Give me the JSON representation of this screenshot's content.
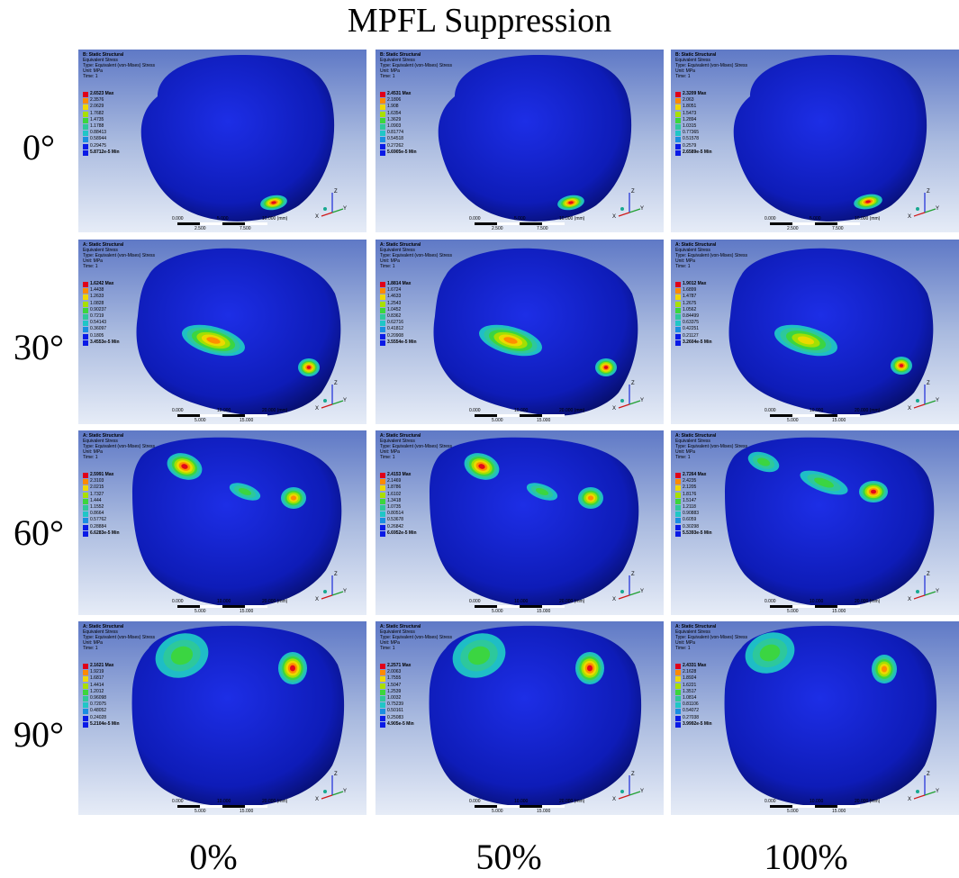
{
  "title": "MPFL Suppression",
  "row_labels": [
    "0°",
    "30°",
    "60°",
    "90°"
  ],
  "col_labels": [
    "0%",
    "50%",
    "100%"
  ],
  "legend_colors": [
    "#e0001a",
    "#ff8a00",
    "#f0d800",
    "#a8e000",
    "#3cd63c",
    "#2ec89a",
    "#20c6c6",
    "#1a8ee0",
    "#0a1ae6"
  ],
  "rows": [
    {
      "header": {
        "system": "B: Static Structural",
        "result": "Equivalent Stress",
        "type": "Type: Equivalent (von-Mises) Stress",
        "unit": "Unit: MPa",
        "time": "Time: 1"
      },
      "scale": {
        "top": [
          "0.000",
          "5.000",
          "10.000 (mm)"
        ],
        "bottom": [
          "2.500",
          "7.500"
        ]
      },
      "panels": [
        {
          "legend": [
            "2.6523 Max",
            "2.3576",
            "2.0629",
            "1.7682",
            "1.4735",
            "1.1788",
            "0.88413",
            "0.58944",
            "0.29475",
            "5.8712e-5 Min"
          ]
        },
        {
          "legend": [
            "2.4531 Max",
            "2.1806",
            "1.908",
            "1.6354",
            "1.3629",
            "1.0903",
            "0.81774",
            "0.54518",
            "0.27262",
            "5.6905e-5 Min"
          ]
        },
        {
          "legend": [
            "2.3209 Max",
            "2.063",
            "1.8051",
            "1.5473",
            "1.2894",
            "1.0315",
            "0.77365",
            "0.51578",
            "0.2579",
            "2.6589e-5 Min"
          ]
        }
      ]
    },
    {
      "header": {
        "system": "A: Static Structural",
        "result": "Equivalent Stress",
        "type": "Type: Equivalent (von-Mises) Stress",
        "unit": "Unit: MPa",
        "time": "Time: 1"
      },
      "scale": {
        "top": [
          "0.000",
          "10.000",
          "20.000 (mm)"
        ],
        "bottom": [
          "5.000",
          "15.000"
        ]
      },
      "panels": [
        {
          "legend": [
            "1.6242 Max",
            "1.4438",
            "1.2633",
            "1.0828",
            "0.90237",
            "0.7219",
            "0.54143",
            "0.36097",
            "0.1805",
            "3.4553e-5 Min"
          ]
        },
        {
          "legend": [
            "1.8814 Max",
            "1.6724",
            "1.4633",
            "1.2543",
            "1.0452",
            "0.8362",
            "0.62716",
            "0.41812",
            "0.20908",
            "3.5554e-5 Min"
          ]
        },
        {
          "legend": [
            "1.9012 Max",
            "1.6899",
            "1.4787",
            "1.2675",
            "1.0562",
            "0.84499",
            "0.63375",
            "0.42251",
            "0.21127",
            "3.2604e-5 Min"
          ]
        }
      ]
    },
    {
      "header": {
        "system": "A: Static Structural",
        "result": "Equivalent Stress",
        "type": "Type: Equivalent (von-Mises) Stress",
        "unit": "Unit: MPa",
        "time": "Time: 1"
      },
      "scale": {
        "top": [
          "0.000",
          "10.000",
          "20.000 (mm)"
        ],
        "bottom": [
          "5.000",
          "15.000"
        ]
      },
      "panels": [
        {
          "legend": [
            "2.5991 Max",
            "2.3103",
            "2.0215",
            "1.7327",
            "1.444",
            "1.1552",
            "0.8664",
            "0.57762",
            "0.28884",
            "6.6283e-5 Min"
          ]
        },
        {
          "legend": [
            "2.4153 Max",
            "2.1469",
            "1.8786",
            "1.6102",
            "1.3418",
            "1.0735",
            "0.80514",
            "0.53678",
            "0.26842",
            "6.6952e-5 Min"
          ]
        },
        {
          "legend": [
            "2.7264 Max",
            "2.4235",
            "2.1205",
            "1.8176",
            "1.5147",
            "1.2118",
            "0.90883",
            "0.6059",
            "0.30298",
            "5.5393e-5 Min"
          ]
        }
      ]
    },
    {
      "header": {
        "system": "A: Static Structural",
        "result": "Equivalent Stress",
        "type": "Type: Equivalent (von-Mises) Stress",
        "unit": "Unit: MPa",
        "time": "Time: 1"
      },
      "scale": {
        "top": [
          "0.000",
          "10.000",
          "20.000 (mm)"
        ],
        "bottom": [
          "5.000",
          "15.000"
        ]
      },
      "panels": [
        {
          "legend": [
            "2.1621 Max",
            "1.9219",
            "1.6817",
            "1.4414",
            "1.2012",
            "0.96098",
            "0.72075",
            "0.48052",
            "0.24028",
            "5.2104e-5 Min"
          ]
        },
        {
          "legend": [
            "2.2571 Max",
            "2.0063",
            "1.7555",
            "1.5047",
            "1.2539",
            "1.0032",
            "0.75239",
            "0.50161",
            "0.25083",
            "4.905e-5 Min"
          ]
        },
        {
          "legend": [
            "2.4331 Max",
            "2.1628",
            "1.8924",
            "1.6221",
            "1.3517",
            "1.0814",
            "0.81106",
            "0.54072",
            "0.27038",
            "3.9992e-5 Min"
          ]
        }
      ]
    }
  ]
}
